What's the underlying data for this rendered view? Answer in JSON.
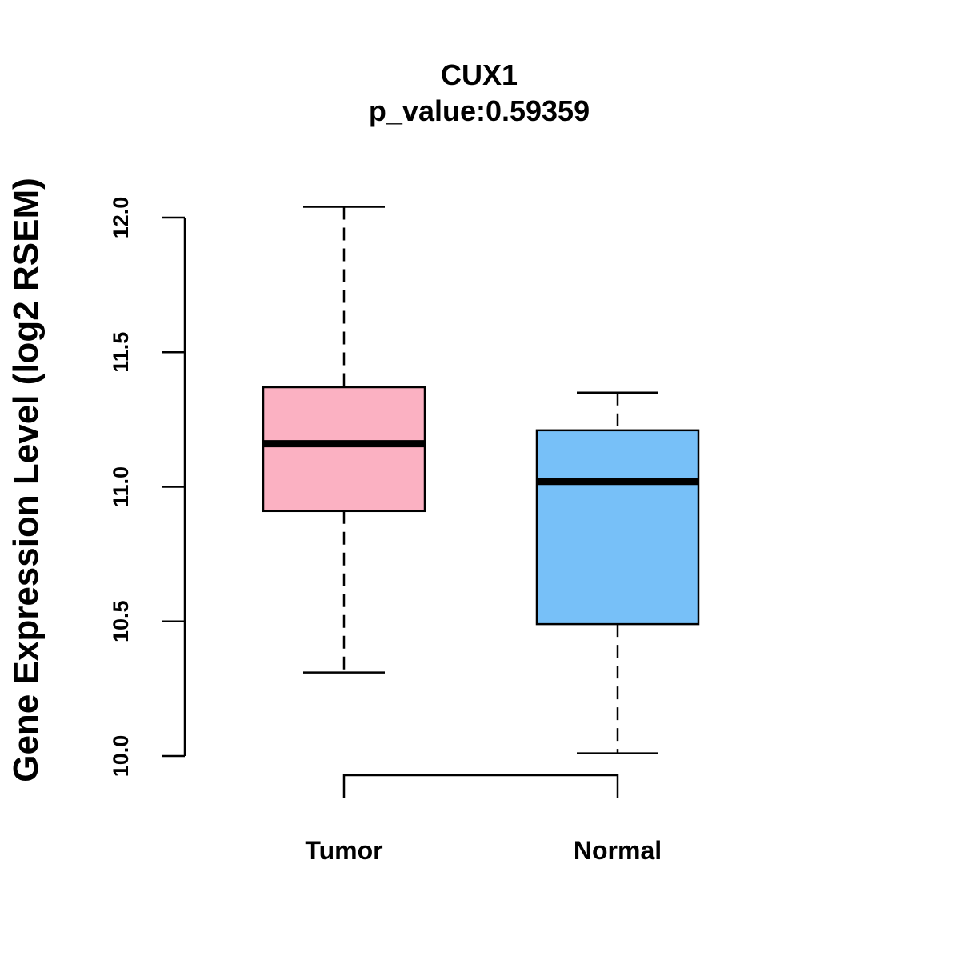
{
  "chart_data": {
    "type": "box",
    "title": "CUX1",
    "subtitle": "p_value:0.59359",
    "ylabel": "Gene Expression Level (log2 RSEM)",
    "xlabel": "",
    "ylim": [
      10.0,
      12.0
    ],
    "yticks": [
      "10.0",
      "10.5",
      "11.0",
      "11.5",
      "12.0"
    ],
    "categories": [
      "Tumor",
      "Normal"
    ],
    "boxes": [
      {
        "name": "Tumor",
        "whisker_low": 10.31,
        "q1": 10.91,
        "median": 11.16,
        "q3": 11.37,
        "whisker_high": 12.04,
        "color": "#FBB1C2"
      },
      {
        "name": "Normal",
        "whisker_low": 10.01,
        "q1": 10.49,
        "median": 11.02,
        "q3": 11.21,
        "whisker_high": 11.35,
        "color": "#77C0F8"
      }
    ],
    "comparison_bracket": [
      "Tumor",
      "Normal"
    ],
    "grid": false
  }
}
